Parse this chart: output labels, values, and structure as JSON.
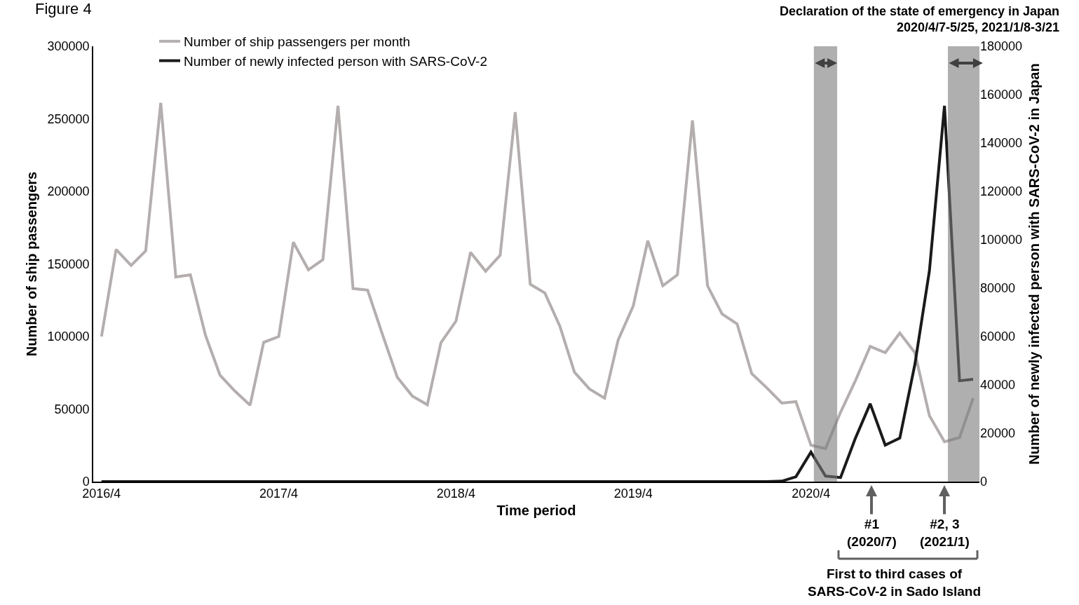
{
  "chart_data": {
    "type": "line",
    "annotations": [
      "Figure 4",
      "Declaration of the state of emergency in Japan\n2020/4/7-5/25, 2021/1/8-3/21",
      "#1\n(2020/7)",
      "#2, 3\n(2021/1)",
      "First to third cases of\nSARS-CoV-2 in Sado Island"
    ],
    "xlabel": "Time period",
    "ylabel": "Number of ship passengers",
    "y2label": "Number of newly infected person with SARS-CoV-2 in Japan",
    "x": [
      "2016-04",
      "2016-05",
      "2016-06",
      "2016-07",
      "2016-08",
      "2016-09",
      "2016-10",
      "2016-11",
      "2016-12",
      "2017-01",
      "2017-02",
      "2017-03",
      "2017-04",
      "2017-05",
      "2017-06",
      "2017-07",
      "2017-08",
      "2017-09",
      "2017-10",
      "2017-11",
      "2017-12",
      "2018-01",
      "2018-02",
      "2018-03",
      "2018-04",
      "2018-05",
      "2018-06",
      "2018-07",
      "2018-08",
      "2018-09",
      "2018-10",
      "2018-11",
      "2018-12",
      "2019-01",
      "2019-02",
      "2019-03",
      "2019-04",
      "2019-05",
      "2019-06",
      "2019-07",
      "2019-08",
      "2019-09",
      "2019-10",
      "2019-11",
      "2019-12",
      "2020-01",
      "2020-02",
      "2020-03",
      "2020-04",
      "2020-05",
      "2020-06",
      "2020-07",
      "2020-08",
      "2020-09",
      "2020-10",
      "2020-11",
      "2020-12",
      "2021-01",
      "2021-02",
      "2021-03"
    ],
    "series": [
      {
        "name": "Number of ship passengers per month",
        "color": "#b4aeae",
        "values": [
          100000,
          160000,
          149000,
          159000,
          261000,
          141000,
          142500,
          101000,
          73400,
          62300,
          52700,
          96000,
          100000,
          165000,
          146000,
          153000,
          259000,
          133000,
          132000,
          101000,
          72000,
          59000,
          53000,
          95700,
          110600,
          158000,
          145000,
          156000,
          254600,
          136000,
          130000,
          107000,
          75400,
          63800,
          57500,
          97600,
          121000,
          166000,
          135000,
          142500,
          249000,
          135000,
          115500,
          108700,
          74400,
          64700,
          54100,
          55100,
          25100,
          22700,
          47800,
          69100,
          93200,
          88900,
          102400,
          88900,
          45400,
          27500,
          30400,
          57500
        ]
      },
      {
        "name": "Number of newly infected person with SARS-CoV-2",
        "color": "#1a1a1a",
        "axis": "y2",
        "values": [
          0,
          0,
          0,
          0,
          0,
          0,
          0,
          0,
          0,
          0,
          0,
          0,
          0,
          0,
          0,
          0,
          0,
          0,
          0,
          0,
          0,
          0,
          0,
          0,
          0,
          0,
          0,
          0,
          0,
          0,
          0,
          0,
          0,
          0,
          0,
          0,
          0,
          0,
          0,
          0,
          0,
          0,
          0,
          0,
          0,
          0,
          200,
          2000,
          12200,
          2300,
          1700,
          17700,
          32200,
          15100,
          18000,
          48400,
          87200,
          155400,
          41700,
          42300
        ]
      }
    ],
    "xlim": [
      "2016-03-15",
      "2021-03-14"
    ],
    "xticks": [
      {
        "value": "2016-04",
        "label": "2016/4"
      },
      {
        "value": "2017-04",
        "label": "2017/4"
      },
      {
        "value": "2018-04",
        "label": "2018/4"
      },
      {
        "value": "2019-04",
        "label": "2019/4"
      },
      {
        "value": "2020-04",
        "label": "2020/4"
      }
    ],
    "ylim": [
      0,
      300000
    ],
    "yticks": [
      0,
      50000,
      100000,
      150000,
      200000,
      250000,
      300000
    ],
    "y2lim": [
      0,
      180000
    ],
    "y2ticks": [
      0,
      20000,
      40000,
      60000,
      80000,
      100000,
      120000,
      140000,
      160000,
      180000
    ],
    "bands": [
      {
        "axis": "x",
        "from": "2020-04-07",
        "to": "2020-05-25",
        "color": "#7a7a7a"
      },
      {
        "axis": "x",
        "from": "2021-01-08",
        "to": "2021-03-21",
        "color": "#7a7a7a"
      }
    ],
    "legend": "top left",
    "marker": "none",
    "line_style": "solid"
  }
}
